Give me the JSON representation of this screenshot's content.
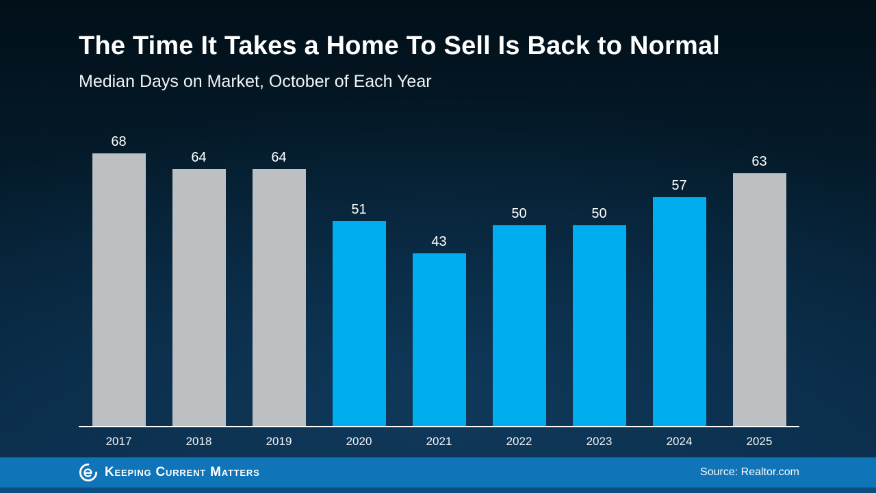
{
  "page": {
    "title": "The Time It Takes a Home To Sell Is Back to Normal",
    "subtitle": "Median Days on Market, October of Each Year"
  },
  "footer": {
    "brand": "Keeping Current Matters",
    "source": "Source: Realtor.com"
  },
  "colors": {
    "gray_bar": "#bcc0c2",
    "blue_bar": "#00aeef",
    "footer_blue": "#0f74b8",
    "footer_strip": "#0b4d7f",
    "axis": "#ffffff"
  },
  "chart_data": {
    "type": "bar",
    "title": "The Time It Takes a Home To Sell Is Back to Normal",
    "subtitle": "Median Days on Market, October of Each Year",
    "categories": [
      "2017",
      "2018",
      "2019",
      "2020",
      "2021",
      "2022",
      "2023",
      "2024",
      "2025"
    ],
    "values": [
      68,
      64,
      64,
      51,
      43,
      50,
      50,
      57,
      63
    ],
    "bar_colors": [
      "gray",
      "gray",
      "gray",
      "blue",
      "blue",
      "blue",
      "blue",
      "blue",
      "gray"
    ],
    "xlabel": "",
    "ylabel": "Median Days on Market",
    "ylim": [
      0,
      68
    ],
    "grid": false,
    "value_labels": true,
    "legend": "none"
  }
}
